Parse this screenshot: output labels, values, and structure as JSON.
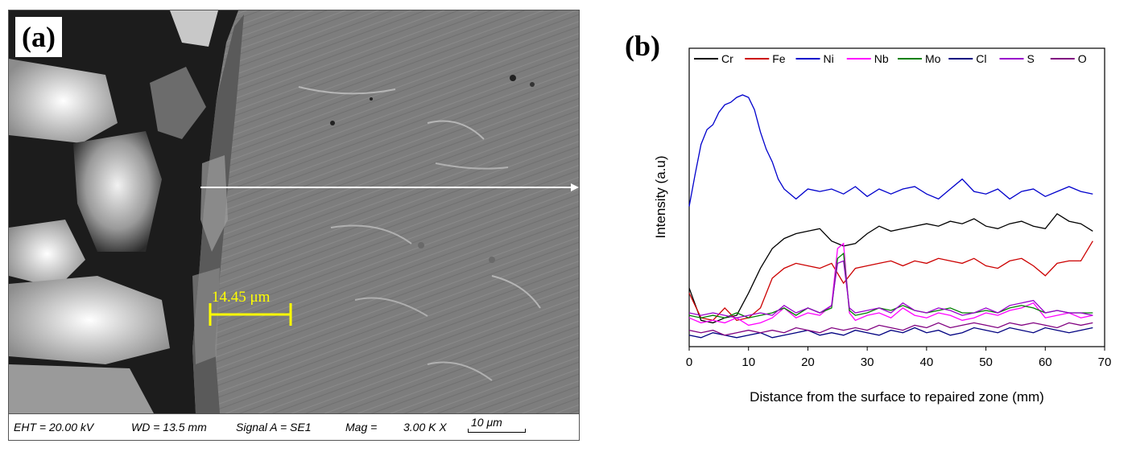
{
  "panel_a": {
    "label": "(a)",
    "scale_marker": "14.45 μm",
    "info": {
      "eht": "EHT = 20.00 kV",
      "wd": "WD = 13.5 mm",
      "signal": "Signal A = SE1",
      "mag": "Mag =",
      "mag_value": "3.00 K X",
      "scale_bar": "10 μm"
    },
    "colors": {
      "marker": "#ffff00",
      "arrow": "#ffffff"
    }
  },
  "panel_b": {
    "label": "(b)"
  },
  "chart_data": {
    "type": "line",
    "title": "",
    "xlabel": "Distance from the surface to repaired zone (mm)",
    "ylabel": "Intensity (a.u)",
    "xlim": [
      0,
      70
    ],
    "ylim": [
      0,
      100
    ],
    "xticks": [
      0,
      10,
      20,
      30,
      40,
      50,
      60,
      70
    ],
    "y_tick_labels_shown": false,
    "legend_position": "top",
    "series": [
      {
        "name": "Cr",
        "color": "#000000",
        "x": [
          0,
          2,
          4,
          6,
          8,
          10,
          12,
          14,
          16,
          18,
          20,
          22,
          24,
          26,
          28,
          30,
          32,
          34,
          36,
          38,
          40,
          42,
          44,
          46,
          48,
          50,
          52,
          54,
          56,
          58,
          60,
          62,
          64,
          66,
          68
        ],
        "y": [
          22,
          9,
          8,
          10,
          11,
          20,
          30,
          38,
          42,
          44,
          45,
          46,
          41,
          39,
          40,
          44,
          47,
          45,
          46,
          47,
          48,
          47,
          49,
          48,
          50,
          47,
          46,
          48,
          49,
          47,
          46,
          52,
          49,
          48,
          45
        ]
      },
      {
        "name": "Fe",
        "color": "#cc0000",
        "x": [
          0,
          2,
          4,
          6,
          8,
          10,
          12,
          14,
          16,
          18,
          20,
          22,
          24,
          26,
          28,
          30,
          32,
          34,
          36,
          38,
          40,
          42,
          44,
          46,
          48,
          50,
          52,
          54,
          56,
          58,
          60,
          62,
          64,
          66,
          68
        ],
        "y": [
          20,
          10,
          9,
          14,
          9,
          10,
          14,
          26,
          30,
          32,
          31,
          30,
          32,
          24,
          30,
          31,
          32,
          33,
          31,
          33,
          32,
          34,
          33,
          32,
          34,
          31,
          30,
          33,
          34,
          31,
          27,
          32,
          33,
          33,
          41
        ]
      },
      {
        "name": "Ni",
        "color": "#0000cc",
        "x": [
          0,
          1,
          2,
          3,
          4,
          5,
          6,
          7,
          8,
          9,
          10,
          11,
          12,
          13,
          14,
          15,
          16,
          18,
          20,
          22,
          24,
          26,
          28,
          30,
          32,
          34,
          36,
          38,
          40,
          42,
          44,
          46,
          48,
          50,
          52,
          54,
          56,
          58,
          60,
          62,
          64,
          66,
          68
        ],
        "y": [
          55,
          68,
          80,
          86,
          88,
          93,
          96,
          97,
          99,
          100,
          99,
          94,
          85,
          78,
          73,
          66,
          62,
          58,
          62,
          61,
          62,
          60,
          63,
          59,
          62,
          60,
          62,
          63,
          60,
          58,
          62,
          66,
          61,
          60,
          62,
          58,
          61,
          62,
          59,
          61,
          63,
          61,
          60
        ]
      },
      {
        "name": "Nb",
        "color": "#ff00ff",
        "x": [
          0,
          2,
          4,
          6,
          8,
          10,
          12,
          14,
          16,
          18,
          20,
          22,
          24,
          25,
          26,
          27,
          28,
          30,
          32,
          34,
          36,
          38,
          40,
          42,
          44,
          46,
          48,
          50,
          52,
          54,
          56,
          58,
          60,
          62,
          64,
          66,
          68
        ],
        "y": [
          10,
          8,
          9,
          8,
          10,
          7,
          8,
          10,
          14,
          10,
          12,
          11,
          15,
          38,
          40,
          12,
          9,
          11,
          12,
          10,
          14,
          11,
          10,
          12,
          11,
          9,
          10,
          12,
          11,
          13,
          14,
          16,
          10,
          11,
          12,
          10,
          11
        ]
      },
      {
        "name": "Mo",
        "color": "#008000",
        "x": [
          0,
          2,
          4,
          6,
          8,
          10,
          12,
          14,
          16,
          18,
          20,
          22,
          24,
          25,
          26,
          27,
          28,
          30,
          32,
          34,
          36,
          38,
          40,
          42,
          44,
          46,
          48,
          50,
          52,
          54,
          56,
          58,
          60,
          62,
          64,
          66,
          68
        ],
        "y": [
          11,
          10,
          11,
          10,
          12,
          10,
          11,
          12,
          14,
          11,
          14,
          12,
          14,
          34,
          36,
          13,
          11,
          12,
          14,
          13,
          15,
          13,
          12,
          13,
          14,
          12,
          12,
          13,
          12,
          14,
          15,
          14,
          12,
          13,
          12,
          12,
          12
        ]
      },
      {
        "name": "Cl",
        "color": "#000080",
        "x": [
          0,
          2,
          4,
          6,
          8,
          10,
          12,
          14,
          16,
          18,
          20,
          22,
          24,
          26,
          28,
          30,
          32,
          34,
          36,
          38,
          40,
          42,
          44,
          46,
          48,
          50,
          52,
          54,
          56,
          58,
          60,
          62,
          64,
          66,
          68
        ],
        "y": [
          3,
          2,
          4,
          3,
          2,
          3,
          4,
          2,
          3,
          4,
          5,
          3,
          4,
          3,
          5,
          4,
          3,
          5,
          4,
          6,
          4,
          5,
          3,
          4,
          6,
          5,
          4,
          6,
          5,
          4,
          6,
          5,
          4,
          5,
          6
        ]
      },
      {
        "name": "S",
        "color": "#9900cc",
        "x": [
          0,
          2,
          4,
          6,
          8,
          10,
          12,
          14,
          16,
          18,
          20,
          22,
          24,
          25,
          26,
          27,
          28,
          30,
          32,
          34,
          36,
          38,
          40,
          42,
          44,
          46,
          48,
          50,
          52,
          54,
          56,
          58,
          60,
          62,
          64,
          66,
          68
        ],
        "y": [
          12,
          11,
          12,
          11,
          10,
          11,
          12,
          11,
          15,
          12,
          14,
          12,
          15,
          32,
          33,
          14,
          12,
          13,
          14,
          12,
          16,
          13,
          12,
          14,
          13,
          11,
          12,
          14,
          12,
          15,
          16,
          17,
          12,
          13,
          12,
          12,
          11
        ]
      },
      {
        "name": "O",
        "color": "#800080",
        "x": [
          0,
          2,
          4,
          6,
          8,
          10,
          12,
          14,
          16,
          18,
          20,
          22,
          24,
          26,
          28,
          30,
          32,
          34,
          36,
          38,
          40,
          42,
          44,
          46,
          48,
          50,
          52,
          54,
          56,
          58,
          60,
          62,
          64,
          66,
          68
        ],
        "y": [
          5,
          4,
          5,
          3,
          4,
          5,
          4,
          5,
          4,
          6,
          5,
          4,
          6,
          5,
          6,
          5,
          7,
          6,
          5,
          7,
          6,
          8,
          6,
          7,
          8,
          7,
          6,
          8,
          7,
          8,
          7,
          6,
          8,
          7,
          8
        ]
      }
    ]
  }
}
